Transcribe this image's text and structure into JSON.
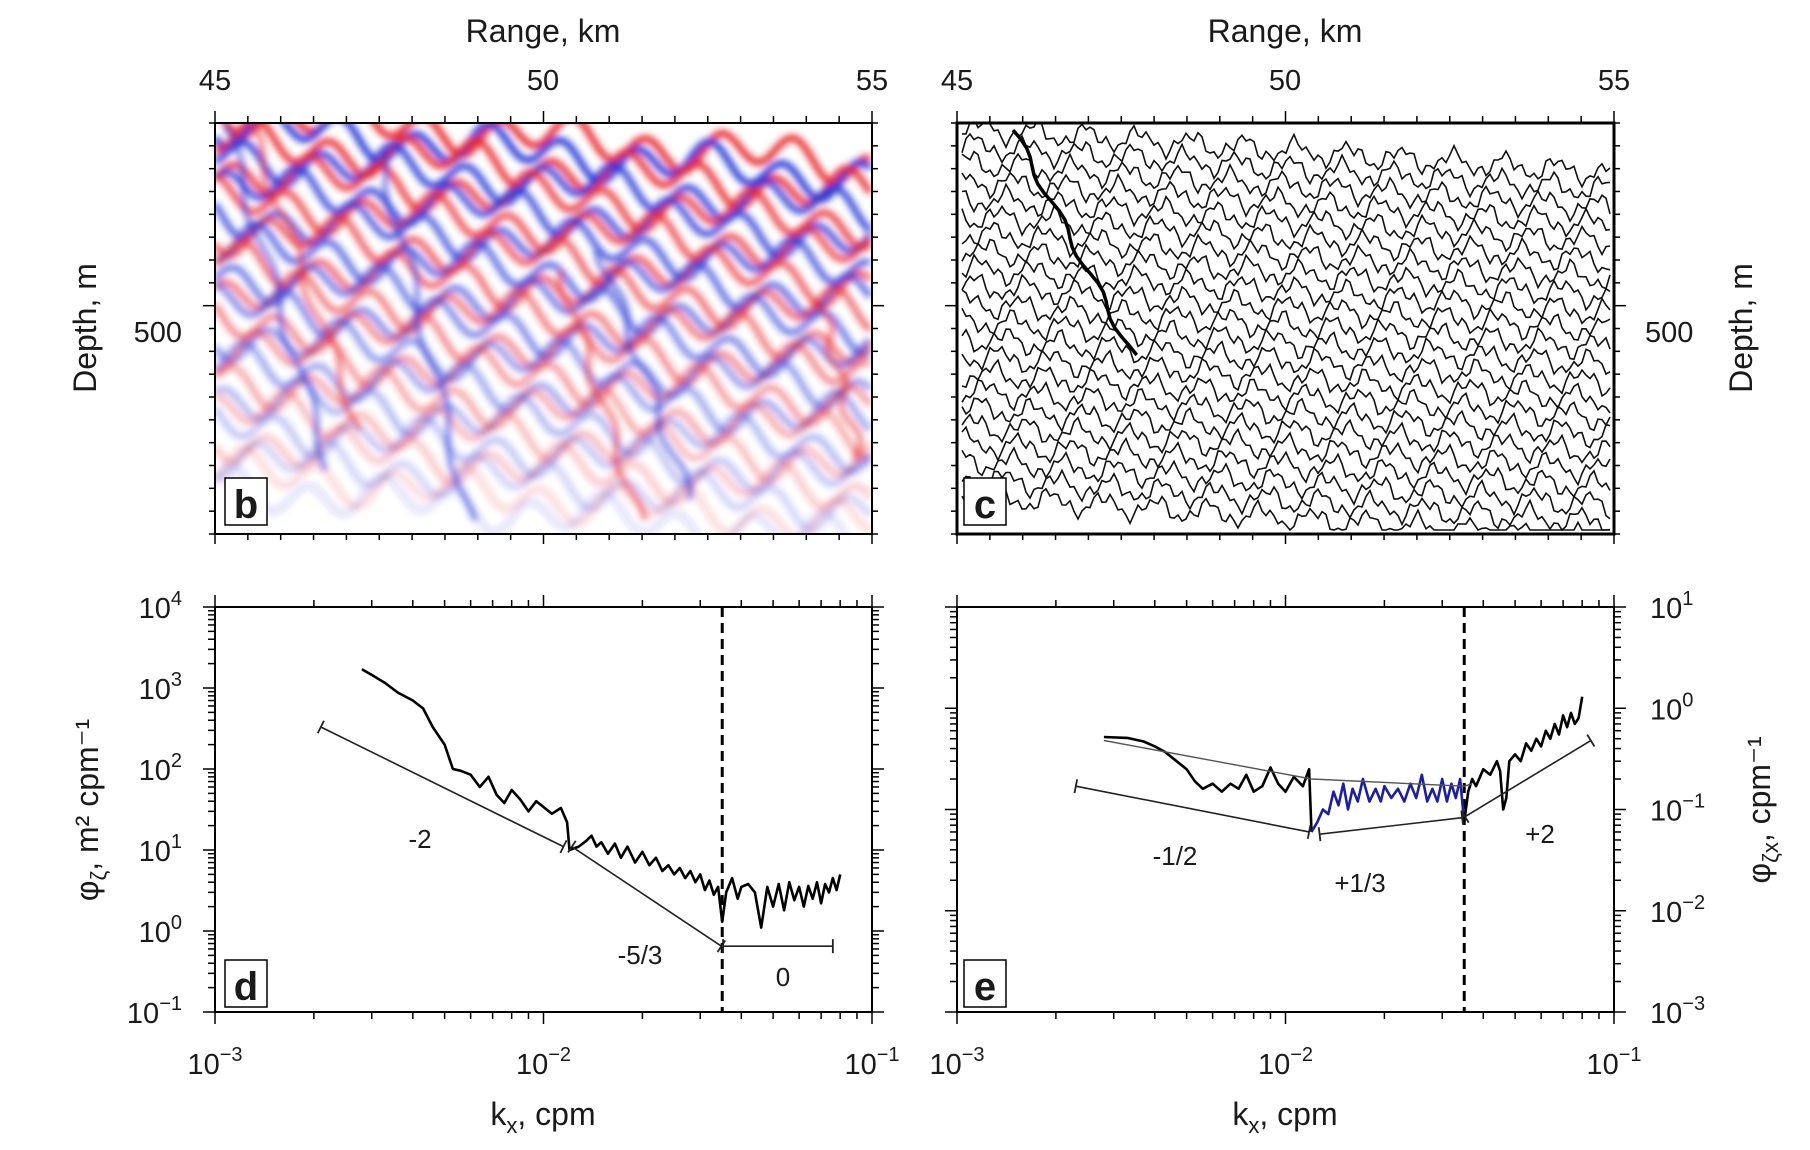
{
  "chart_data": [
    {
      "panel": "b",
      "type": "heatmap",
      "xlabel": "Range, km",
      "ylabel": "Depth, m",
      "x_ticks": [
        45,
        50,
        55
      ],
      "y_ticks": [
        500
      ],
      "xlim": [
        45,
        55
      ],
      "colors": {
        "positive": "#e8262b",
        "negative": "#1f32d6",
        "zero": "#ffffff"
      },
      "label": "b"
    },
    {
      "panel": "c",
      "type": "line",
      "xlabel": "Range, km",
      "ylabel": "Depth, m",
      "x_ticks": [
        45,
        50,
        55
      ],
      "y_ticks": [
        500
      ],
      "xlim": [
        45,
        55
      ],
      "label": "c"
    },
    {
      "panel": "d",
      "type": "line",
      "xlabel": "k",
      "xlabel_sub": "x",
      "xlabel_unit": ", cpm",
      "ylabel": "φ",
      "ylabel_sub": "ζ",
      "ylabel_unit": ", m² cpm⁻¹",
      "x_scale": "log",
      "y_scale": "log",
      "xlim": [
        0.001,
        0.1
      ],
      "ylim": [
        0.1,
        10000
      ],
      "x_ticks": [
        {
          "base": "10",
          "exp": "−3"
        },
        {
          "base": "10",
          "exp": "−2"
        },
        {
          "base": "10",
          "exp": "−1"
        }
      ],
      "y_ticks": [
        {
          "base": "10",
          "exp": "4"
        },
        {
          "base": "10",
          "exp": "3"
        },
        {
          "base": "10",
          "exp": "2"
        },
        {
          "base": "10",
          "exp": "1"
        },
        {
          "base": "10",
          "exp": "0"
        },
        {
          "base": "10",
          "exp": "−1"
        }
      ],
      "vline_x": 0.035,
      "series": [
        {
          "color": "#000000",
          "points": [
            [
              0.0028,
              1700
            ],
            [
              0.003,
              1450
            ],
            [
              0.0033,
              1150
            ],
            [
              0.0036,
              880
            ],
            [
              0.004,
              700
            ],
            [
              0.0043,
              560
            ],
            [
              0.0046,
              330
            ],
            [
              0.005,
              200
            ],
            [
              0.0053,
              100
            ],
            [
              0.0056,
              95
            ],
            [
              0.006,
              85
            ],
            [
              0.0064,
              60
            ],
            [
              0.0068,
              80
            ],
            [
              0.0072,
              48
            ],
            [
              0.0076,
              38
            ],
            [
              0.008,
              55
            ],
            [
              0.0085,
              42
            ],
            [
              0.009,
              30
            ],
            [
              0.0095,
              40
            ],
            [
              0.01,
              34
            ],
            [
              0.0106,
              28
            ],
            [
              0.0113,
              33
            ],
            [
              0.0118,
              22
            ],
            [
              0.012,
              10
            ],
            [
              0.0128,
              11
            ],
            [
              0.0135,
              13
            ],
            [
              0.014,
              15
            ],
            [
              0.0145,
              11
            ],
            [
              0.015,
              12.5
            ],
            [
              0.0157,
              9
            ],
            [
              0.0165,
              12
            ],
            [
              0.0172,
              8
            ],
            [
              0.018,
              11
            ],
            [
              0.019,
              7
            ],
            [
              0.02,
              9.5
            ],
            [
              0.021,
              6.5
            ],
            [
              0.022,
              8
            ],
            [
              0.023,
              5.5
            ],
            [
              0.024,
              6.5
            ],
            [
              0.025,
              5
            ],
            [
              0.026,
              6
            ],
            [
              0.027,
              4.5
            ],
            [
              0.028,
              5.5
            ],
            [
              0.029,
              4
            ],
            [
              0.03,
              5
            ],
            [
              0.031,
              3.2
            ],
            [
              0.032,
              4.2
            ],
            [
              0.033,
              2.8
            ],
            [
              0.034,
              3.5
            ],
            [
              0.035,
              1.3
            ],
            [
              0.036,
              3
            ],
            [
              0.0375,
              4.5
            ],
            [
              0.039,
              2.5
            ],
            [
              0.04,
              3.5
            ],
            [
              0.042,
              3.8
            ],
            [
              0.044,
              3
            ],
            [
              0.046,
              1.1
            ],
            [
              0.048,
              3.5
            ],
            [
              0.05,
              2
            ],
            [
              0.052,
              3.8
            ],
            [
              0.054,
              1.8
            ],
            [
              0.056,
              4
            ],
            [
              0.058,
              2.4
            ],
            [
              0.06,
              3.5
            ],
            [
              0.062,
              2
            ],
            [
              0.064,
              3.6
            ],
            [
              0.066,
              2.5
            ],
            [
              0.068,
              4
            ],
            [
              0.07,
              2.2
            ],
            [
              0.072,
              3.8
            ],
            [
              0.074,
              3
            ],
            [
              0.076,
              4.5
            ],
            [
              0.078,
              3.2
            ],
            [
              0.08,
              5
            ]
          ]
        }
      ],
      "reference_slopes": [
        {
          "label": "-2",
          "x": [
            0.0021,
            0.0115
          ],
          "y": [
            330,
            11
          ]
        },
        {
          "label": "-5/3",
          "x": [
            0.0122,
            0.0348
          ],
          "y": [
            11,
            0.65
          ]
        },
        {
          "label": "0",
          "x": [
            0.0352,
            0.076
          ],
          "y": [
            0.65,
            0.65
          ]
        }
      ],
      "label": "d"
    },
    {
      "panel": "e",
      "type": "line",
      "xlabel": "k",
      "xlabel_sub": "x",
      "xlabel_unit": ", cpm",
      "ylabel": "φ",
      "ylabel_sub": "ζx",
      "ylabel_unit": ", cpm⁻¹",
      "x_scale": "log",
      "y_scale": "log",
      "xlim": [
        0.001,
        0.1
      ],
      "ylim": [
        0.001,
        10
      ],
      "x_ticks": [
        {
          "base": "10",
          "exp": "−3"
        },
        {
          "base": "10",
          "exp": "−2"
        },
        {
          "base": "10",
          "exp": "−1"
        }
      ],
      "y_ticks": [
        {
          "base": "10",
          "exp": "1"
        },
        {
          "base": "10",
          "exp": "0"
        },
        {
          "base": "10",
          "exp": "−1"
        },
        {
          "base": "10",
          "exp": "−2"
        },
        {
          "base": "10",
          "exp": "−3"
        }
      ],
      "vline_x": 0.035,
      "series": [
        {
          "color": "#000000",
          "points": [
            [
              0.0028,
              0.52
            ],
            [
              0.0033,
              0.51
            ],
            [
              0.0037,
              0.47
            ],
            [
              0.004,
              0.42
            ],
            [
              0.0043,
              0.37
            ],
            [
              0.0046,
              0.31
            ],
            [
              0.005,
              0.25
            ],
            [
              0.0053,
              0.19
            ],
            [
              0.0056,
              0.16
            ],
            [
              0.006,
              0.18
            ],
            [
              0.0064,
              0.15
            ],
            [
              0.0068,
              0.18
            ],
            [
              0.0072,
              0.16
            ],
            [
              0.0076,
              0.22
            ],
            [
              0.008,
              0.15
            ],
            [
              0.0085,
              0.17
            ],
            [
              0.009,
              0.26
            ],
            [
              0.0095,
              0.18
            ],
            [
              0.01,
              0.15
            ],
            [
              0.0106,
              0.21
            ],
            [
              0.0113,
              0.17
            ],
            [
              0.0118,
              0.25
            ],
            [
              0.012,
              0.06
            ]
          ]
        },
        {
          "color": "#1c1fa0",
          "points": [
            [
              0.012,
              0.06
            ],
            [
              0.0125,
              0.075
            ],
            [
              0.013,
              0.1
            ],
            [
              0.0135,
              0.09
            ],
            [
              0.014,
              0.15
            ],
            [
              0.0145,
              0.11
            ],
            [
              0.015,
              0.18
            ],
            [
              0.0155,
              0.1
            ],
            [
              0.016,
              0.16
            ],
            [
              0.0166,
              0.12
            ],
            [
              0.0172,
              0.2
            ],
            [
              0.018,
              0.12
            ],
            [
              0.0188,
              0.16
            ],
            [
              0.0195,
              0.12
            ],
            [
              0.02,
              0.17
            ],
            [
              0.021,
              0.13
            ],
            [
              0.022,
              0.16
            ],
            [
              0.023,
              0.12
            ],
            [
              0.024,
              0.18
            ],
            [
              0.025,
              0.13
            ],
            [
              0.026,
              0.22
            ],
            [
              0.027,
              0.12
            ],
            [
              0.028,
              0.16
            ],
            [
              0.029,
              0.12
            ],
            [
              0.03,
              0.2
            ],
            [
              0.031,
              0.12
            ],
            [
              0.032,
              0.18
            ],
            [
              0.033,
              0.13
            ],
            [
              0.034,
              0.2
            ],
            [
              0.035,
              0.075
            ]
          ]
        },
        {
          "color": "#000000",
          "points": [
            [
              0.035,
              0.075
            ],
            [
              0.036,
              0.15
            ],
            [
              0.037,
              0.2
            ],
            [
              0.038,
              0.17
            ],
            [
              0.04,
              0.25
            ],
            [
              0.042,
              0.22
            ],
            [
              0.044,
              0.3
            ],
            [
              0.045,
              0.24
            ],
            [
              0.046,
              0.1
            ],
            [
              0.047,
              0.13
            ],
            [
              0.048,
              0.3
            ],
            [
              0.05,
              0.35
            ],
            [
              0.052,
              0.3
            ],
            [
              0.054,
              0.45
            ],
            [
              0.056,
              0.38
            ],
            [
              0.058,
              0.5
            ],
            [
              0.06,
              0.42
            ],
            [
              0.062,
              0.6
            ],
            [
              0.064,
              0.5
            ],
            [
              0.066,
              0.7
            ],
            [
              0.068,
              0.55
            ],
            [
              0.07,
              0.85
            ],
            [
              0.072,
              0.65
            ],
            [
              0.074,
              0.9
            ],
            [
              0.076,
              0.7
            ],
            [
              0.078,
              0.8
            ],
            [
              0.08,
              1.3
            ]
          ]
        },
        {
          "color": "#555555",
          "points": [
            [
              0.0028,
              0.48
            ],
            [
              0.012,
              0.2
            ],
            [
              0.035,
              0.17
            ],
            [
              0.037,
              0.18
            ]
          ]
        }
      ],
      "reference_slopes": [
        {
          "label": "-1/2",
          "x": [
            0.0023,
            0.0118
          ],
          "y": [
            0.17,
            0.06
          ]
        },
        {
          "label": "+1/3",
          "x": [
            0.0127,
            0.0345
          ],
          "y": [
            0.057,
            0.083
          ]
        },
        {
          "label": "+2",
          "x": [
            0.0352,
            0.085
          ],
          "y": [
            0.085,
            0.48
          ]
        }
      ],
      "label": "e"
    }
  ]
}
